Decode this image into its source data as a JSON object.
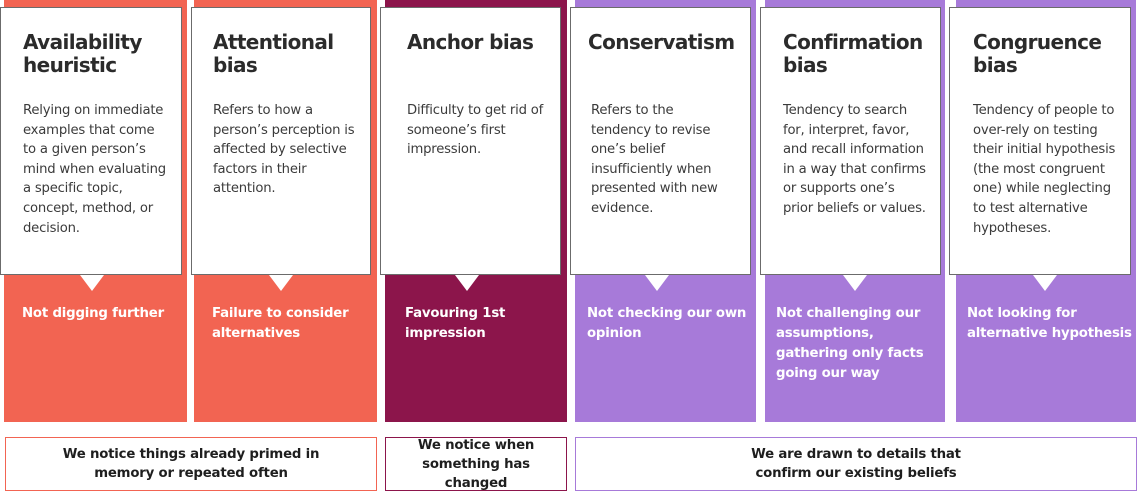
{
  "colors": {
    "coral": "#f26452",
    "maroon": "#8c154b",
    "lavender": "#a77ad9"
  },
  "columns": [
    {
      "title": "Availability heuristic",
      "description": "Relying on immediate examples that come to a given person’s mind when evaluating a specific topic, concept, method, or decision.",
      "effect": "Not digging further"
    },
    {
      "title": "Attentional bias",
      "description": "Refers to how a person’s perception is affected by selective factors in their attention.",
      "effect": "Failure to consider alternatives"
    },
    {
      "title": "Anchor bias",
      "description": "Difficulty to get rid of someone’s first impression.",
      "effect": "Favouring 1st impression"
    },
    {
      "title": "Conservatism",
      "description": "Refers to the tendency to revise one’s belief insufficiently when presented with new evidence.",
      "effect": "Not checking our own opinion"
    },
    {
      "title": "Confirmation bias",
      "description": "Tendency to search for, interpret, favor, and recall information in a way that confirms or supports one’s prior beliefs or values.",
      "effect": "Not challenging our assumptions, gathering only facts going our way"
    },
    {
      "title": "Congruence bias",
      "description": "Tendency of people to over-rely on testing their initial hypothesis (the most congruent one) while neglecting to test alternative hypotheses.",
      "effect": "Not looking for alternative hypothesis"
    }
  ],
  "footers": [
    {
      "text": "We notice things already primed in memory or repeated often"
    },
    {
      "text": "We notice when something has changed"
    },
    {
      "text": "We are drawn to details that confirm our existing beliefs"
    }
  ]
}
